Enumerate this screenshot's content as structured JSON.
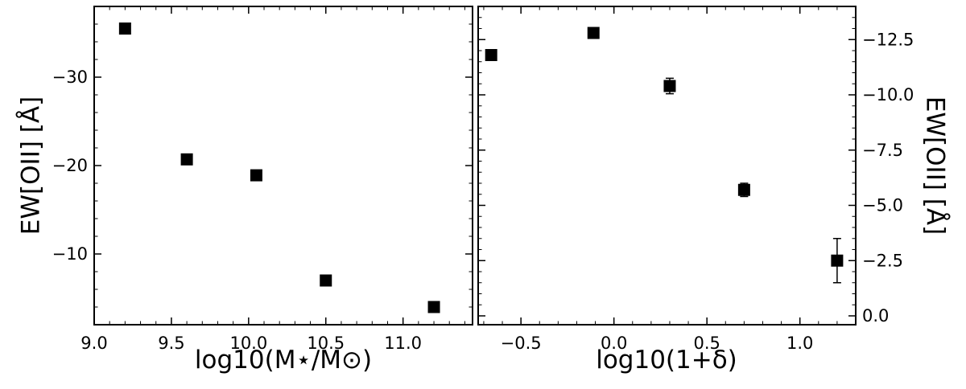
{
  "chart_data": [
    {
      "type": "scatter",
      "title": "",
      "xlabel": "log10(M⋆/M⊙)",
      "ylabel": "EW[OII] [Å]",
      "xlim": [
        9.0,
        11.45
      ],
      "ylim": [
        -2.0,
        -38.0
      ],
      "y_inverted": true,
      "y_axis_side": "left",
      "grid": false,
      "x_ticks": [
        9.0,
        9.5,
        10.0,
        10.5,
        11.0
      ],
      "x_tick_labels": [
        "9.0",
        "9.5",
        "10.0",
        "10.5",
        "11.0"
      ],
      "y_ticks": [
        -30,
        -20,
        -10
      ],
      "y_tick_labels": [
        "−30",
        "−20",
        "−10"
      ],
      "marker": "square",
      "color": "#000000",
      "points": [
        {
          "x": 9.2,
          "y": -35.5
        },
        {
          "x": 9.6,
          "y": -20.7
        },
        {
          "x": 10.05,
          "y": -18.9
        },
        {
          "x": 10.5,
          "y": -7.0
        },
        {
          "x": 11.2,
          "y": -4.0
        }
      ]
    },
    {
      "type": "scatter",
      "title": "",
      "xlabel": "log10(1+δ)",
      "ylabel": "EW[OII] [Å]",
      "xlim": [
        -0.73,
        1.3
      ],
      "ylim": [
        0.4,
        -14.0
      ],
      "y_inverted": true,
      "y_axis_side": "right",
      "grid": false,
      "x_ticks": [
        -0.5,
        0.0,
        0.5,
        1.0
      ],
      "x_tick_labels": [
        "−0.5",
        "0.0",
        "0.5",
        "1.0"
      ],
      "y_ticks": [
        0.0,
        -2.5,
        -5.0,
        -7.5,
        -10.0,
        -12.5
      ],
      "y_tick_labels": [
        "0.0",
        "−2.5",
        "−5.0",
        "−7.5",
        "−10.0",
        "−12.5"
      ],
      "marker": "square",
      "color": "#000000",
      "points": [
        {
          "x": -0.66,
          "y": -11.8,
          "yerr": 0
        },
        {
          "x": -0.11,
          "y": -12.8,
          "yerr": 0
        },
        {
          "x": 0.3,
          "y": -10.4,
          "yerr": 0.35
        },
        {
          "x": 0.7,
          "y": -5.7,
          "yerr": 0.3
        },
        {
          "x": 1.2,
          "y": -2.5,
          "yerr": 1.0
        }
      ]
    }
  ]
}
